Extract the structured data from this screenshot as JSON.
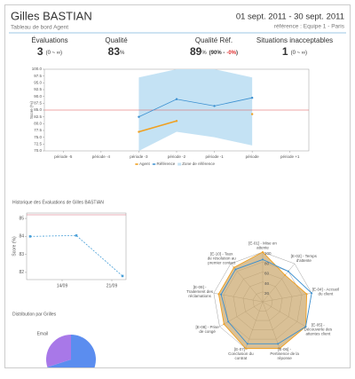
{
  "header": {
    "name": "Gilles BASTIAN",
    "subtitle": "Tableau de bord Agent",
    "period": "01 sept. 2011 - 30 sept. 2011",
    "reference": "référence : Equipe 1 - Paris"
  },
  "kpis": [
    {
      "label": "Évaluations",
      "value": "3",
      "range": "(0 ~ ∞)"
    },
    {
      "label": "Qualité",
      "value": "83",
      "unit": "%"
    },
    {
      "label": "Qualité Réf.",
      "value": "89",
      "unit": "%",
      "range": "(90% -",
      "delta": "-0%",
      "range_end": ")"
    },
    {
      "label": "Situations inacceptables",
      "value": "1",
      "range": "(0 ~ ∞)"
    }
  ],
  "main_chart": {
    "type": "line",
    "ylabel": "Score (%)",
    "categories": [
      "période -5",
      "période -4",
      "période -3",
      "période -2",
      "période -1",
      "période",
      "période +1"
    ],
    "ylim": [
      70,
      100
    ],
    "yticks": [
      {
        "value": 70,
        "label": "70.0"
      },
      72.5,
      {
        "value": 75,
        "label": "75.0"
      },
      77.5,
      {
        "value": 80,
        "label": "80.0"
      },
      82.5,
      {
        "value": 85,
        "label": "85.0"
      },
      87.5,
      {
        "value": 90,
        "label": "90.0"
      },
      92.5,
      {
        "value": 95,
        "label": "95.0"
      },
      97.5,
      {
        "value": 100,
        "label": "100.0"
      }
    ],
    "series": [
      {
        "name": "Agent",
        "color": "#f0a020",
        "values": [
          null,
          null,
          77,
          81,
          null,
          83.5,
          null
        ]
      },
      {
        "name": "Référence",
        "color": "#3a8fd0",
        "values": [
          null,
          null,
          82.5,
          89,
          86.5,
          89.5,
          null
        ]
      }
    ],
    "band": {
      "name": "Zone de référence",
      "color": "#c4e2f4",
      "upper": [
        null,
        null,
        97,
        100,
        100,
        97,
        null
      ],
      "lower": [
        null,
        null,
        70,
        77,
        75,
        72,
        null
      ]
    },
    "threshold": {
      "value": 85,
      "color": "#e05050"
    }
  },
  "history_chart": {
    "type": "line",
    "title": "Historique des Évaluations de Gilles BASTIAN",
    "ylabel": "Score (%)",
    "x": [
      9.5,
      16,
      22.5
    ],
    "xlim": [
      9,
      23
    ],
    "xticks": [
      {
        "value": 14,
        "label": "14/09"
      },
      {
        "value": 21,
        "label": "21/09"
      }
    ],
    "ylim": [
      81.6,
      85.3
    ],
    "yticks": [
      82,
      83,
      84,
      85
    ],
    "color": "#4aa0d8",
    "values": [
      84,
      84.05,
      81.8
    ]
  },
  "radar_chart": {
    "type": "radar",
    "axes": [
      [
        "[E-01] - Mise en",
        "attente"
      ],
      [
        "[E-02] - Temps",
        "d'attente"
      ],
      [
        "[E-04] - Accueil",
        "du client"
      ],
      [
        "[E-05] -",
        "Découverte des",
        "attentes client"
      ],
      [
        "[E-06] -",
        "Pertinence de la",
        "réponse"
      ],
      [
        "[E-07] -",
        "Conclusion du",
        "contrat"
      ],
      [
        "[E-08] - Prise",
        "de congé"
      ],
      [
        "[E-09] -",
        "Traitement des",
        "réclamations"
      ],
      [
        "[E-10] - Taux",
        "de résolution au",
        "premier contact"
      ]
    ],
    "rlim": [
      0,
      100
    ],
    "rticks": [
      20,
      40,
      60,
      80,
      100
    ],
    "series": [
      {
        "color": "#f0a020",
        "fill": "#c9a56a",
        "values": [
          100,
          70,
          90,
          100,
          100,
          100,
          90,
          90,
          90
        ]
      },
      {
        "color": "#3a8fd0",
        "values": [
          85,
          80,
          100,
          100,
          90,
          90,
          80,
          85,
          85
        ]
      }
    ]
  },
  "pie_chart": {
    "type": "pie",
    "title": "Distribution par Grilles",
    "categories": [
      null,
      "Email"
    ],
    "values": [
      70,
      30
    ],
    "colors": [
      "#5b8def",
      "#a878e8"
    ]
  }
}
